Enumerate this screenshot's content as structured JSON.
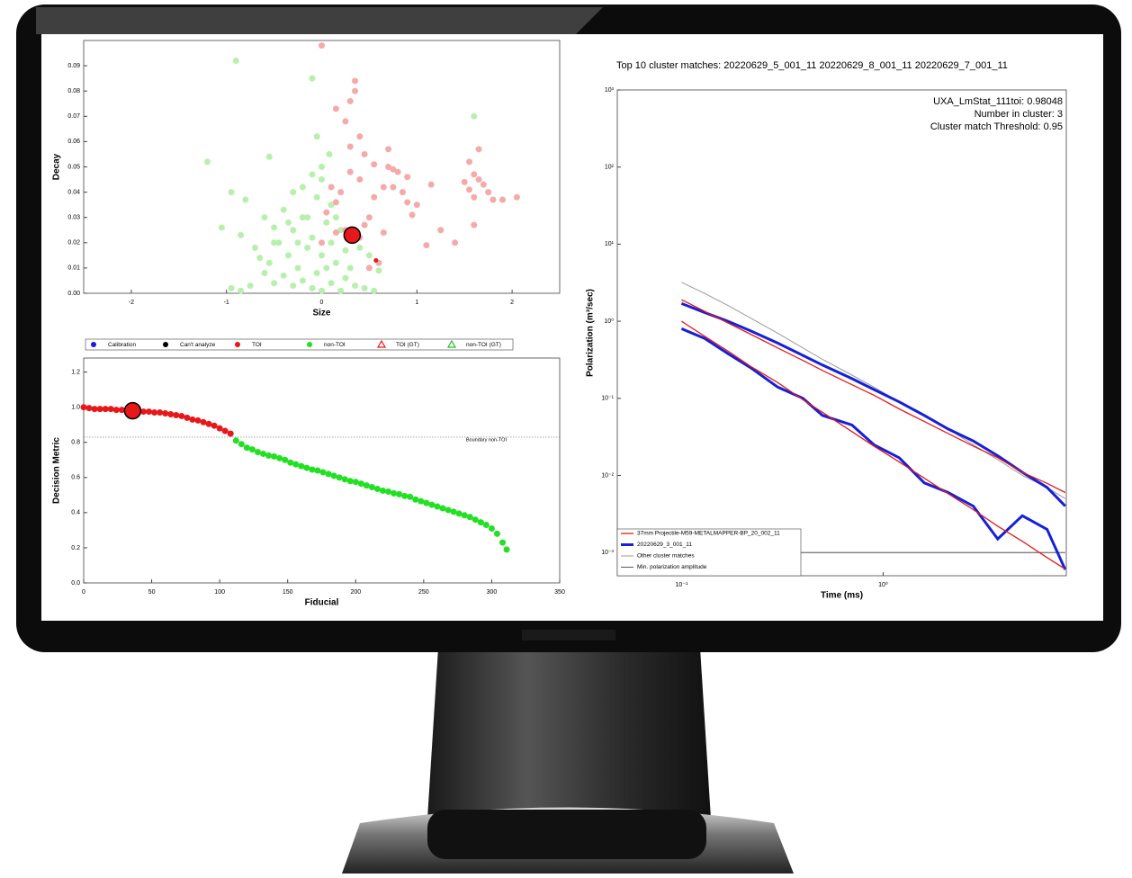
{
  "chart_data": [
    {
      "type": "scatter",
      "xlabel": "Size",
      "ylabel": "Decay",
      "xlim": [
        -2.5,
        2.5
      ],
      "ylim": [
        0,
        0.1
      ],
      "xticks": [
        -2,
        -1,
        0,
        1,
        2
      ],
      "yticks": [
        {
          "value": 0,
          "label": "0.00"
        },
        {
          "value": 0.01,
          "label": "0.01"
        },
        {
          "value": 0.02,
          "label": "0.02"
        },
        {
          "value": 0.03,
          "label": "0.03"
        },
        {
          "value": 0.04,
          "label": "0.04"
        },
        {
          "value": 0.05,
          "label": "0.05"
        },
        {
          "value": 0.06,
          "label": "0.06"
        },
        {
          "value": 0.07,
          "label": "0.07"
        },
        {
          "value": 0.08,
          "label": "0.08"
        },
        {
          "value": 0.09,
          "label": "0.09"
        }
      ],
      "series": [
        {
          "color": "#b7f0ad",
          "marker_radius": 3.5,
          "x": [
            -0.9,
            -1.2,
            -0.1,
            -0.05,
            1.6,
            -0.55,
            -0.3,
            -0.95,
            -0.8,
            -1.05,
            -0.85,
            -0.7,
            -0.6,
            -0.5,
            -0.45,
            -0.4,
            -0.35,
            -0.3,
            -0.25,
            -0.2,
            -0.15,
            -0.1,
            -0.05,
            0.0,
            0.05,
            0.1,
            0.15,
            0.2,
            0.25,
            0.1,
            -0.05,
            0.0,
            -0.2,
            0.3,
            -0.6,
            -0.65,
            -0.5,
            -0.4,
            -0.3,
            -0.2,
            -0.1,
            0.0,
            0.1,
            0.2,
            0.35,
            0.45,
            0.55,
            -0.75,
            -0.85,
            -0.95,
            0.5,
            0.6,
            0.4,
            -0.15,
            0.05,
            -0.35,
            -0.55,
            0.15,
            0.25,
            -0.25,
            0.0,
            -0.1,
            0.08,
            -0.5,
            0.3
          ],
          "values": [
            0.092,
            0.052,
            0.085,
            0.062,
            0.07,
            0.054,
            0.04,
            0.04,
            0.037,
            0.026,
            0.023,
            0.018,
            0.03,
            0.026,
            0.02,
            0.033,
            0.015,
            0.025,
            0.01,
            0.03,
            0.018,
            0.022,
            0.008,
            0.015,
            0.028,
            0.02,
            0.012,
            0.025,
            0.006,
            0.035,
            0.038,
            0.045,
            0.042,
            0.01,
            0.008,
            0.014,
            0.004,
            0.007,
            0.003,
            0.005,
            0.002,
            0.001,
            0.004,
            0.001,
            0.003,
            0.002,
            0.001,
            0.003,
            0.001,
            0.002,
            0.015,
            0.009,
            0.018,
            0.03,
            0.01,
            0.028,
            0.012,
            0.03,
            0.017,
            0.02,
            0.05,
            0.047,
            0.055,
            0.02,
            0.022
          ]
        },
        {
          "color": "#f5aaa9",
          "marker_radius": 3.5,
          "x": [
            0.0,
            0.3,
            0.35,
            0.35,
            0.15,
            0.25,
            0.4,
            0.3,
            0.45,
            0.55,
            0.7,
            0.7,
            0.75,
            0.8,
            0.75,
            0.85,
            0.9,
            0.95,
            1.0,
            0.9,
            0.65,
            0.55,
            0.5,
            0.4,
            0.3,
            0.2,
            0.15,
            0.1,
            0.05,
            0.25,
            0.4,
            0.15,
            1.15,
            1.1,
            1.25,
            1.4,
            1.5,
            1.55,
            1.6,
            1.65,
            1.7,
            1.6,
            1.75,
            1.55,
            1.65,
            1.8,
            1.9,
            2.05,
            1.6,
            0.45,
            0.65,
            0.5,
            0.0,
            0.6
          ],
          "values": [
            0.098,
            0.076,
            0.084,
            0.08,
            0.073,
            0.068,
            0.062,
            0.058,
            0.055,
            0.051,
            0.057,
            0.05,
            0.049,
            0.048,
            0.042,
            0.04,
            0.036,
            0.031,
            0.035,
            0.046,
            0.042,
            0.038,
            0.03,
            0.045,
            0.048,
            0.04,
            0.036,
            0.042,
            0.032,
            0.025,
            0.022,
            0.024,
            0.043,
            0.019,
            0.025,
            0.02,
            0.044,
            0.041,
            0.047,
            0.045,
            0.043,
            0.038,
            0.04,
            0.052,
            0.057,
            0.037,
            0.037,
            0.038,
            0.027,
            0.027,
            0.024,
            0.01,
            0.02,
            0.012
          ]
        },
        {
          "color": "#e8181a",
          "marker_radius": 2.5,
          "x": [
            0.57
          ],
          "values": [
            0.013
          ]
        },
        {
          "color": "#e8181a",
          "edge_color": "#000000",
          "marker_radius": 9,
          "x": [
            0.32
          ],
          "values": [
            0.023
          ]
        }
      ]
    },
    {
      "type": "scatter",
      "xlabel": "Fiducial",
      "ylabel": "Decision Metric",
      "xlim": [
        0,
        350
      ],
      "ylim": [
        0,
        1.28
      ],
      "xticks": [
        0,
        50,
        100,
        150,
        200,
        250,
        300,
        350
      ],
      "yticks": [
        {
          "value": 0,
          "label": "0.0"
        },
        {
          "value": 0.2,
          "label": "0.2"
        },
        {
          "value": 0.4,
          "label": "0.4"
        },
        {
          "value": 0.6,
          "label": "0.6"
        },
        {
          "value": 0.8,
          "label": "0.8"
        },
        {
          "value": 1.0,
          "label": "1.0"
        },
        {
          "value": 1.2,
          "label": "1.2"
        }
      ],
      "hline": {
        "value": 0.83,
        "label": "Boundary non-TOI"
      },
      "legend": [
        {
          "label": "Calibration",
          "color": "#1a1ae0",
          "marker": "circle"
        },
        {
          "label": "Can't analyze",
          "color": "#000000",
          "marker": "circle"
        },
        {
          "label": "TOI",
          "color": "#e8181a",
          "marker": "circle"
        },
        {
          "label": "non-TOI",
          "color": "#22e022",
          "marker": "circle"
        },
        {
          "label": "TOI (GT)",
          "color": "#e8181a",
          "marker": "triangle"
        },
        {
          "label": "non-TOI (GT)",
          "color": "#22c022",
          "marker": "triangle"
        }
      ],
      "series": [
        {
          "color": "#e8181a",
          "marker_radius": 3.5,
          "x": [
            0,
            4,
            8,
            12,
            16,
            20,
            24,
            28,
            32,
            36,
            40,
            44,
            48,
            52,
            56,
            60,
            64,
            68,
            72,
            76,
            80,
            84,
            88,
            92,
            96,
            100,
            104,
            108
          ],
          "values": [
            1.0,
            0.995,
            0.99,
            0.99,
            0.99,
            0.99,
            0.985,
            0.985,
            0.98,
            0.98,
            0.98,
            0.975,
            0.975,
            0.97,
            0.97,
            0.965,
            0.96,
            0.955,
            0.95,
            0.94,
            0.93,
            0.925,
            0.915,
            0.905,
            0.895,
            0.88,
            0.865,
            0.85
          ]
        },
        {
          "color": "#22e022",
          "marker_radius": 3.5,
          "x": [
            112,
            116,
            120,
            124,
            128,
            132,
            136,
            140,
            144,
            148,
            152,
            156,
            160,
            164,
            168,
            172,
            176,
            180,
            184,
            188,
            192,
            196,
            200,
            204,
            208,
            212,
            216,
            220,
            224,
            228,
            232,
            236,
            240,
            244,
            248,
            252,
            256,
            260,
            264,
            268,
            272,
            276,
            280,
            284,
            288,
            292,
            296,
            300,
            304,
            308,
            311
          ],
          "values": [
            0.81,
            0.79,
            0.77,
            0.76,
            0.745,
            0.735,
            0.725,
            0.72,
            0.71,
            0.7,
            0.685,
            0.675,
            0.665,
            0.655,
            0.645,
            0.64,
            0.63,
            0.62,
            0.61,
            0.6,
            0.59,
            0.58,
            0.575,
            0.565,
            0.555,
            0.545,
            0.535,
            0.525,
            0.52,
            0.51,
            0.505,
            0.495,
            0.49,
            0.475,
            0.465,
            0.455,
            0.445,
            0.435,
            0.425,
            0.415,
            0.405,
            0.395,
            0.385,
            0.375,
            0.36,
            0.345,
            0.33,
            0.31,
            0.28,
            0.23,
            0.19
          ]
        },
        {
          "color": "#e8181a",
          "edge_color": "#000000",
          "marker_radius": 9,
          "x": [
            36
          ],
          "values": [
            0.98
          ]
        }
      ]
    },
    {
      "type": "line",
      "title": "Top 10 cluster matches:  20220629_5_001_11  20220629_8_001_11  20220629_7_001_11",
      "xlabel": "Time (ms)",
      "ylabel": "Polarization (m³/sec)",
      "annotations": [
        "UXA_LmStat_111toi: 0.98048",
        "Number in cluster: 3",
        "Cluster match Threshold: 0.95"
      ],
      "log_x": true,
      "log_y": true,
      "xlim": [
        0.048,
        8.1
      ],
      "ylim": [
        0.0005,
        1000
      ],
      "xticks": [
        {
          "value": 0.1,
          "label": "10⁻¹"
        },
        {
          "value": 1,
          "label": "10⁰"
        }
      ],
      "yticks": [
        {
          "value": 0.001,
          "label": "10⁻³"
        },
        {
          "value": 0.01,
          "label": "10⁻²"
        },
        {
          "value": 0.1,
          "label": "10⁻¹"
        },
        {
          "value": 1,
          "label": "10⁰"
        },
        {
          "value": 10,
          "label": "10¹"
        },
        {
          "value": 100,
          "label": "10²"
        },
        {
          "value": 1000,
          "label": "10³"
        }
      ],
      "x": [
        0.1,
        0.13,
        0.17,
        0.22,
        0.3,
        0.4,
        0.5,
        0.7,
        0.9,
        1.2,
        1.6,
        2.1,
        2.8,
        3.7,
        4.9,
        6.5,
        8.0
      ],
      "series": [
        {
          "name": "37mm Projectile-M59-METALMAPPER-BP_20_002_11",
          "color": "#e8181a",
          "line_width": 1.3,
          "values": [
            1.9,
            1.35,
            0.95,
            0.68,
            0.45,
            0.31,
            0.23,
            0.15,
            0.11,
            0.073,
            0.05,
            0.035,
            0.024,
            0.017,
            0.011,
            0.0079,
            0.006
          ]
        },
        {
          "color": "#e8181a",
          "line_width": 1.3,
          "values": [
            1.0,
            0.64,
            0.41,
            0.26,
            0.16,
            0.096,
            0.066,
            0.037,
            0.024,
            0.015,
            0.0092,
            0.0058,
            0.0036,
            0.0022,
            0.0014,
            0.00086,
            0.00061
          ]
        },
        {
          "name": "20220629_3_001_11",
          "color": "#1520d8",
          "line_width": 3,
          "values": [
            1.7,
            1.3,
            1.0,
            0.75,
            0.52,
            0.36,
            0.27,
            0.18,
            0.13,
            0.09,
            0.06,
            0.04,
            0.028,
            0.018,
            0.011,
            0.007,
            0.004
          ]
        },
        {
          "color": "#1520d8",
          "line_width": 3,
          "values": [
            0.8,
            0.6,
            0.38,
            0.25,
            0.14,
            0.1,
            0.06,
            0.045,
            0.025,
            0.017,
            0.008,
            0.006,
            0.004,
            0.0015,
            0.003,
            0.002,
            0.0006
          ]
        },
        {
          "name": "Other cluster matches",
          "color": "#9a9a9a",
          "line_width": 1,
          "values": [
            3.2,
            2.3,
            1.6,
            1.1,
            0.7,
            0.45,
            0.32,
            0.2,
            0.14,
            0.09,
            0.06,
            0.04,
            0.025,
            0.016,
            0.01,
            0.007,
            0.005
          ]
        },
        {
          "name": "Min. polarization amplitude",
          "color": "#333333",
          "line_width": 0.8,
          "values": [
            0.001,
            0.001,
            0.001,
            0.001,
            0.001,
            0.001,
            0.001,
            0.001,
            0.001,
            0.001,
            0.001,
            0.001,
            0.001,
            0.001,
            0.001,
            0.001,
            0.001
          ]
        }
      ]
    }
  ]
}
